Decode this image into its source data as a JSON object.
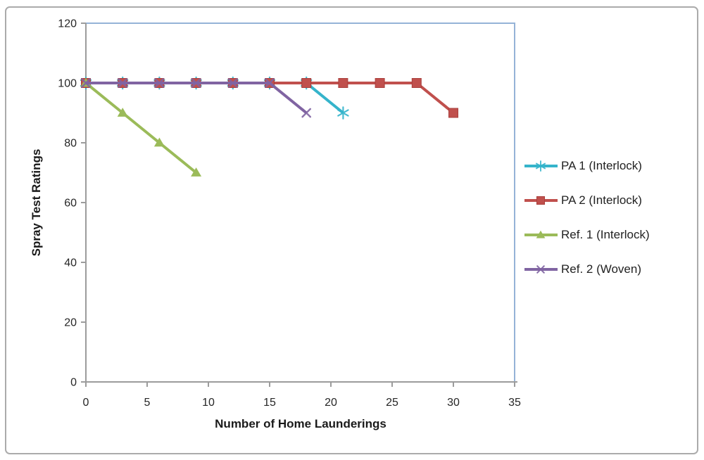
{
  "chart_data": {
    "type": "line",
    "title": "",
    "xlabel": "Number of Home Launderings",
    "ylabel": "Spray Test Ratings",
    "xlim": [
      0,
      35
    ],
    "ylim": [
      0,
      120
    ],
    "xticks": [
      0,
      5,
      10,
      15,
      20,
      25,
      30,
      35
    ],
    "yticks": [
      0,
      20,
      40,
      60,
      80,
      100,
      120
    ],
    "grid": false,
    "legend_position": "right-outside",
    "series": [
      {
        "name": "PA 1 (Interlock)",
        "color": "#35B4CB",
        "marker": "asterisk",
        "x": [
          0,
          3,
          6,
          9,
          12,
          15,
          18,
          21
        ],
        "y": [
          100,
          100,
          100,
          100,
          100,
          100,
          100,
          90
        ]
      },
      {
        "name": "PA 2 (Interlock)",
        "color": "#C0504D",
        "marker": "square",
        "x": [
          0,
          3,
          6,
          9,
          12,
          15,
          18,
          21,
          24,
          27,
          30
        ],
        "y": [
          100,
          100,
          100,
          100,
          100,
          100,
          100,
          100,
          100,
          100,
          90
        ]
      },
      {
        "name": "Ref. 1 (Interlock)",
        "color": "#9BBB59",
        "marker": "triangle",
        "x": [
          0,
          3,
          6,
          9
        ],
        "y": [
          100,
          90,
          80,
          70
        ]
      },
      {
        "name": "Ref. 2 (Woven)",
        "color": "#8064A2",
        "marker": "x",
        "x": [
          0,
          3,
          6,
          9,
          12,
          15,
          18
        ],
        "y": [
          100,
          100,
          100,
          100,
          100,
          100,
          90
        ]
      }
    ]
  },
  "colors": {
    "plot_border": "#95B3D7",
    "axis_line": "#9C9C9C",
    "tick_text": "#262626",
    "axis_title_text": "#1A1A1A",
    "outer_frame": "#ABABAB",
    "background": "#FFFFFF"
  }
}
